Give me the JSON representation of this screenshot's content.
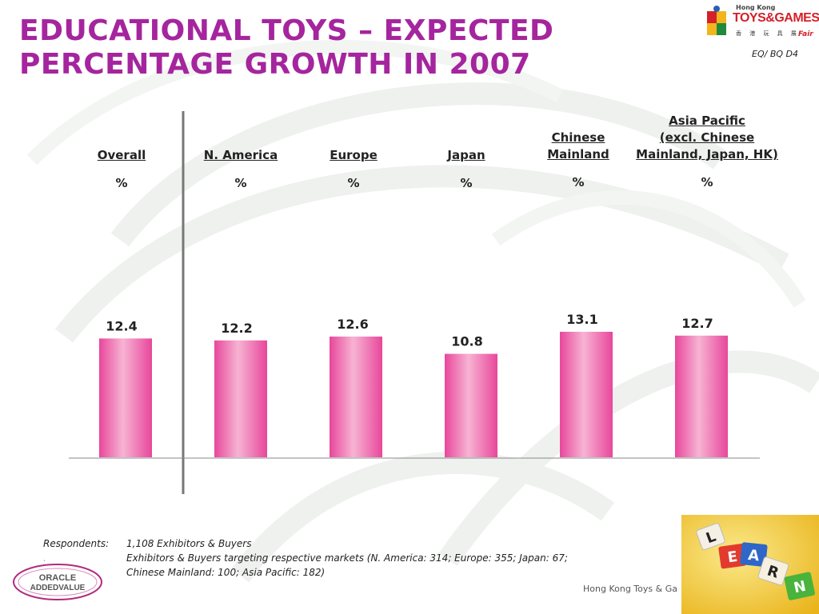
{
  "title_line1": "EDUCATIONAL TOYS – EXPECTED",
  "title_line2": "PERCENTAGE GROWTH IN 2007",
  "reference": "EQ/ BQ D4",
  "logo": {
    "line1": "Hong Kong",
    "line2": "TOYS&GAMES",
    "line3": "香 港 玩 具 展",
    "line4": "Fair"
  },
  "columns": [
    {
      "label": "Overall",
      "unit": "%"
    },
    {
      "label": "N. America",
      "unit": "%"
    },
    {
      "label": "Europe",
      "unit": "%"
    },
    {
      "label": "Japan",
      "unit": "%"
    },
    {
      "label_lines": [
        "Chinese ",
        "Mainland"
      ],
      "unit": "%"
    },
    {
      "label_lines": [
        "Asia Pacific",
        "(excl. Chinese",
        "Mainland, Japan, HK)"
      ],
      "unit": "%"
    }
  ],
  "chart_data": {
    "type": "bar",
    "categories": [
      "Overall",
      "N. America",
      "Europe",
      "Japan",
      "Chinese Mainland",
      "Asia Pacific (excl. Chinese Mainland, Japan, HK)"
    ],
    "values": [
      12.4,
      12.2,
      12.6,
      10.8,
      13.1,
      12.7
    ],
    "value_labels": [
      "12.4",
      "12.2",
      "12.6",
      "10.8",
      "13.1",
      "12.7"
    ],
    "bar_color": "#e8479b",
    "bar_highlight": "#f7b3d3",
    "legend": "none",
    "grid": false
  },
  "footnote": {
    "label": "Respondents:",
    "line1": "1,108 Exhibitors & Buyers",
    "line2": "Exhibitors & Buyers targeting respective markets (N. America: 314; Europe: 355; Japan: 67;",
    "line3": "Chinese Mainland: 100; Asia Pacific: 182)",
    "bullet": "."
  },
  "oracle_logo": {
    "line1": "ORACLE",
    "line2": "ADDEDVALUE"
  },
  "footer_text": "Hong Kong Toys & Ga",
  "learn_letters": [
    "L",
    "E",
    "A",
    "R",
    "N"
  ]
}
